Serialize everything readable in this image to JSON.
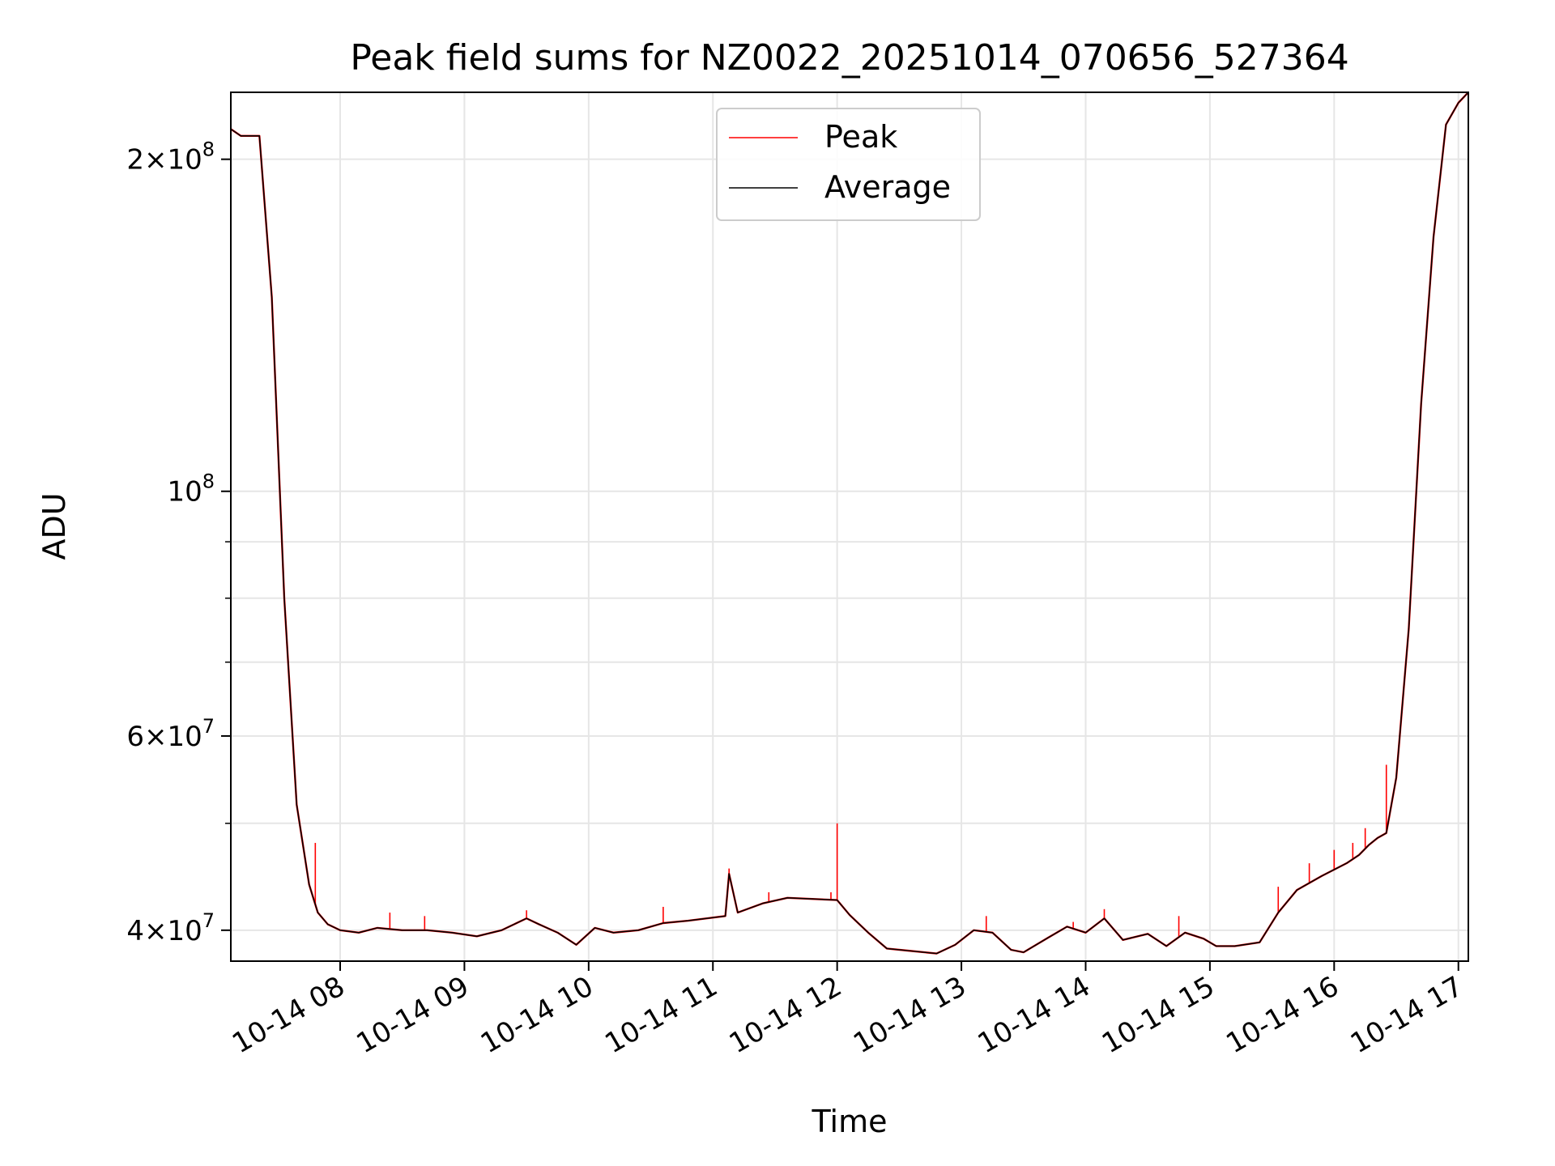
{
  "chart_data": {
    "type": "line",
    "title": "Peak field sums for NZ0022_20251014_070656_527364",
    "xlabel": "Time",
    "ylabel": "ADU",
    "yscale": "log",
    "ylim": [
      37500000,
      230000000
    ],
    "xlim": [
      7.12,
      17.08
    ],
    "grid": true,
    "legend_position": "top-center",
    "x_ticks": [
      {
        "value": 8,
        "label": "10-14 08"
      },
      {
        "value": 9,
        "label": "10-14 09"
      },
      {
        "value": 10,
        "label": "10-14 10"
      },
      {
        "value": 11,
        "label": "10-14 11"
      },
      {
        "value": 12,
        "label": "10-14 12"
      },
      {
        "value": 13,
        "label": "10-14 13"
      },
      {
        "value": 14,
        "label": "10-14 14"
      },
      {
        "value": 15,
        "label": "10-14 15"
      },
      {
        "value": 16,
        "label": "10-14 16"
      },
      {
        "value": 17,
        "label": "10-14 17"
      }
    ],
    "y_major_ticks": [
      {
        "value": 40000000,
        "mantissa": "4",
        "exp": "7"
      },
      {
        "value": 60000000,
        "mantissa": "6",
        "exp": "7"
      },
      {
        "value": 100000000,
        "mantissa": "",
        "exp": "8"
      },
      {
        "value": 200000000,
        "mantissa": "2",
        "exp": "8"
      }
    ],
    "y_minor_ticks": [
      50000000,
      70000000,
      80000000,
      90000000
    ],
    "series": [
      {
        "name": "Peak",
        "color": "#ff0000",
        "x": [
          7.12,
          7.2,
          7.35,
          7.45,
          7.55,
          7.65,
          7.75,
          7.82,
          7.9,
          8.0,
          8.15,
          8.3,
          8.5,
          8.7,
          8.9,
          9.1,
          9.3,
          9.5,
          9.6,
          9.75,
          9.9,
          10.05,
          10.2,
          10.4,
          10.6,
          10.8,
          10.95,
          11.1,
          11.13,
          11.2,
          11.4,
          11.6,
          11.8,
          12.0,
          12.1,
          12.25,
          12.4,
          12.6,
          12.8,
          12.95,
          13.1,
          13.25,
          13.4,
          13.5,
          13.7,
          13.85,
          14.0,
          14.15,
          14.3,
          14.5,
          14.65,
          14.8,
          14.95,
          15.05,
          15.2,
          15.4,
          15.55,
          15.7,
          15.9,
          16.1,
          16.2,
          16.28,
          16.35,
          16.42,
          16.5,
          16.6,
          16.7,
          16.8,
          16.9,
          17.0,
          17.08
        ],
        "values": [
          213000000,
          210000000,
          210000000,
          150000000,
          80000000,
          52000000,
          44000000,
          41500000,
          40500000,
          40000000,
          39800000,
          40200000,
          40000000,
          40000000,
          39800000,
          39500000,
          40000000,
          41000000,
          40500000,
          39800000,
          38800000,
          40200000,
          39800000,
          40000000,
          40600000,
          40800000,
          41000000,
          41200000,
          45000000,
          41500000,
          42300000,
          42800000,
          42700000,
          42600000,
          41300000,
          39800000,
          38500000,
          38300000,
          38100000,
          38800000,
          40000000,
          39800000,
          38400000,
          38200000,
          39400000,
          40300000,
          39800000,
          41000000,
          39200000,
          39700000,
          38700000,
          39800000,
          39300000,
          38700000,
          38700000,
          39000000,
          41500000,
          43500000,
          44800000,
          46000000,
          46800000,
          47800000,
          48500000,
          49000000,
          55000000,
          75000000,
          120000000,
          170000000,
          215000000,
          225000000,
          230000000
        ],
        "spikes": [
          {
            "x": 7.8,
            "y": 48000000
          },
          {
            "x": 8.4,
            "y": 41500000
          },
          {
            "x": 8.68,
            "y": 41200000
          },
          {
            "x": 9.5,
            "y": 41700000
          },
          {
            "x": 10.6,
            "y": 42000000
          },
          {
            "x": 11.13,
            "y": 45500000
          },
          {
            "x": 11.45,
            "y": 43300000
          },
          {
            "x": 11.95,
            "y": 43300000
          },
          {
            "x": 12.0,
            "y": 50000000
          },
          {
            "x": 13.2,
            "y": 41200000
          },
          {
            "x": 13.9,
            "y": 40700000
          },
          {
            "x": 14.15,
            "y": 41800000
          },
          {
            "x": 14.75,
            "y": 41200000
          },
          {
            "x": 15.55,
            "y": 43800000
          },
          {
            "x": 15.8,
            "y": 46000000
          },
          {
            "x": 16.0,
            "y": 47300000
          },
          {
            "x": 16.15,
            "y": 48000000
          },
          {
            "x": 16.25,
            "y": 49500000
          },
          {
            "x": 16.42,
            "y": 56500000
          }
        ]
      },
      {
        "name": "Average",
        "color": "#000000",
        "x": [
          7.12,
          7.2,
          7.35,
          7.45,
          7.55,
          7.65,
          7.75,
          7.82,
          7.9,
          8.0,
          8.15,
          8.3,
          8.5,
          8.7,
          8.9,
          9.1,
          9.3,
          9.5,
          9.6,
          9.75,
          9.9,
          10.05,
          10.2,
          10.4,
          10.6,
          10.8,
          10.95,
          11.1,
          11.13,
          11.2,
          11.4,
          11.6,
          11.8,
          12.0,
          12.1,
          12.25,
          12.4,
          12.6,
          12.8,
          12.95,
          13.1,
          13.25,
          13.4,
          13.5,
          13.7,
          13.85,
          14.0,
          14.15,
          14.3,
          14.5,
          14.65,
          14.8,
          14.95,
          15.05,
          15.2,
          15.4,
          15.55,
          15.7,
          15.9,
          16.1,
          16.2,
          16.28,
          16.35,
          16.42,
          16.5,
          16.6,
          16.7,
          16.8,
          16.9,
          17.0,
          17.08
        ],
        "values": [
          213000000,
          210000000,
          210000000,
          150000000,
          80000000,
          52000000,
          44000000,
          41500000,
          40500000,
          40000000,
          39800000,
          40200000,
          40000000,
          40000000,
          39800000,
          39500000,
          40000000,
          41000000,
          40500000,
          39800000,
          38800000,
          40200000,
          39800000,
          40000000,
          40600000,
          40800000,
          41000000,
          41200000,
          45000000,
          41500000,
          42300000,
          42800000,
          42700000,
          42600000,
          41300000,
          39800000,
          38500000,
          38300000,
          38100000,
          38800000,
          40000000,
          39800000,
          38400000,
          38200000,
          39400000,
          40300000,
          39800000,
          41000000,
          39200000,
          39700000,
          38700000,
          39800000,
          39300000,
          38700000,
          38700000,
          39000000,
          41500000,
          43500000,
          44800000,
          46000000,
          46800000,
          47800000,
          48500000,
          49000000,
          55000000,
          75000000,
          120000000,
          170000000,
          215000000,
          225000000,
          230000000
        ],
        "spikes": []
      }
    ]
  }
}
